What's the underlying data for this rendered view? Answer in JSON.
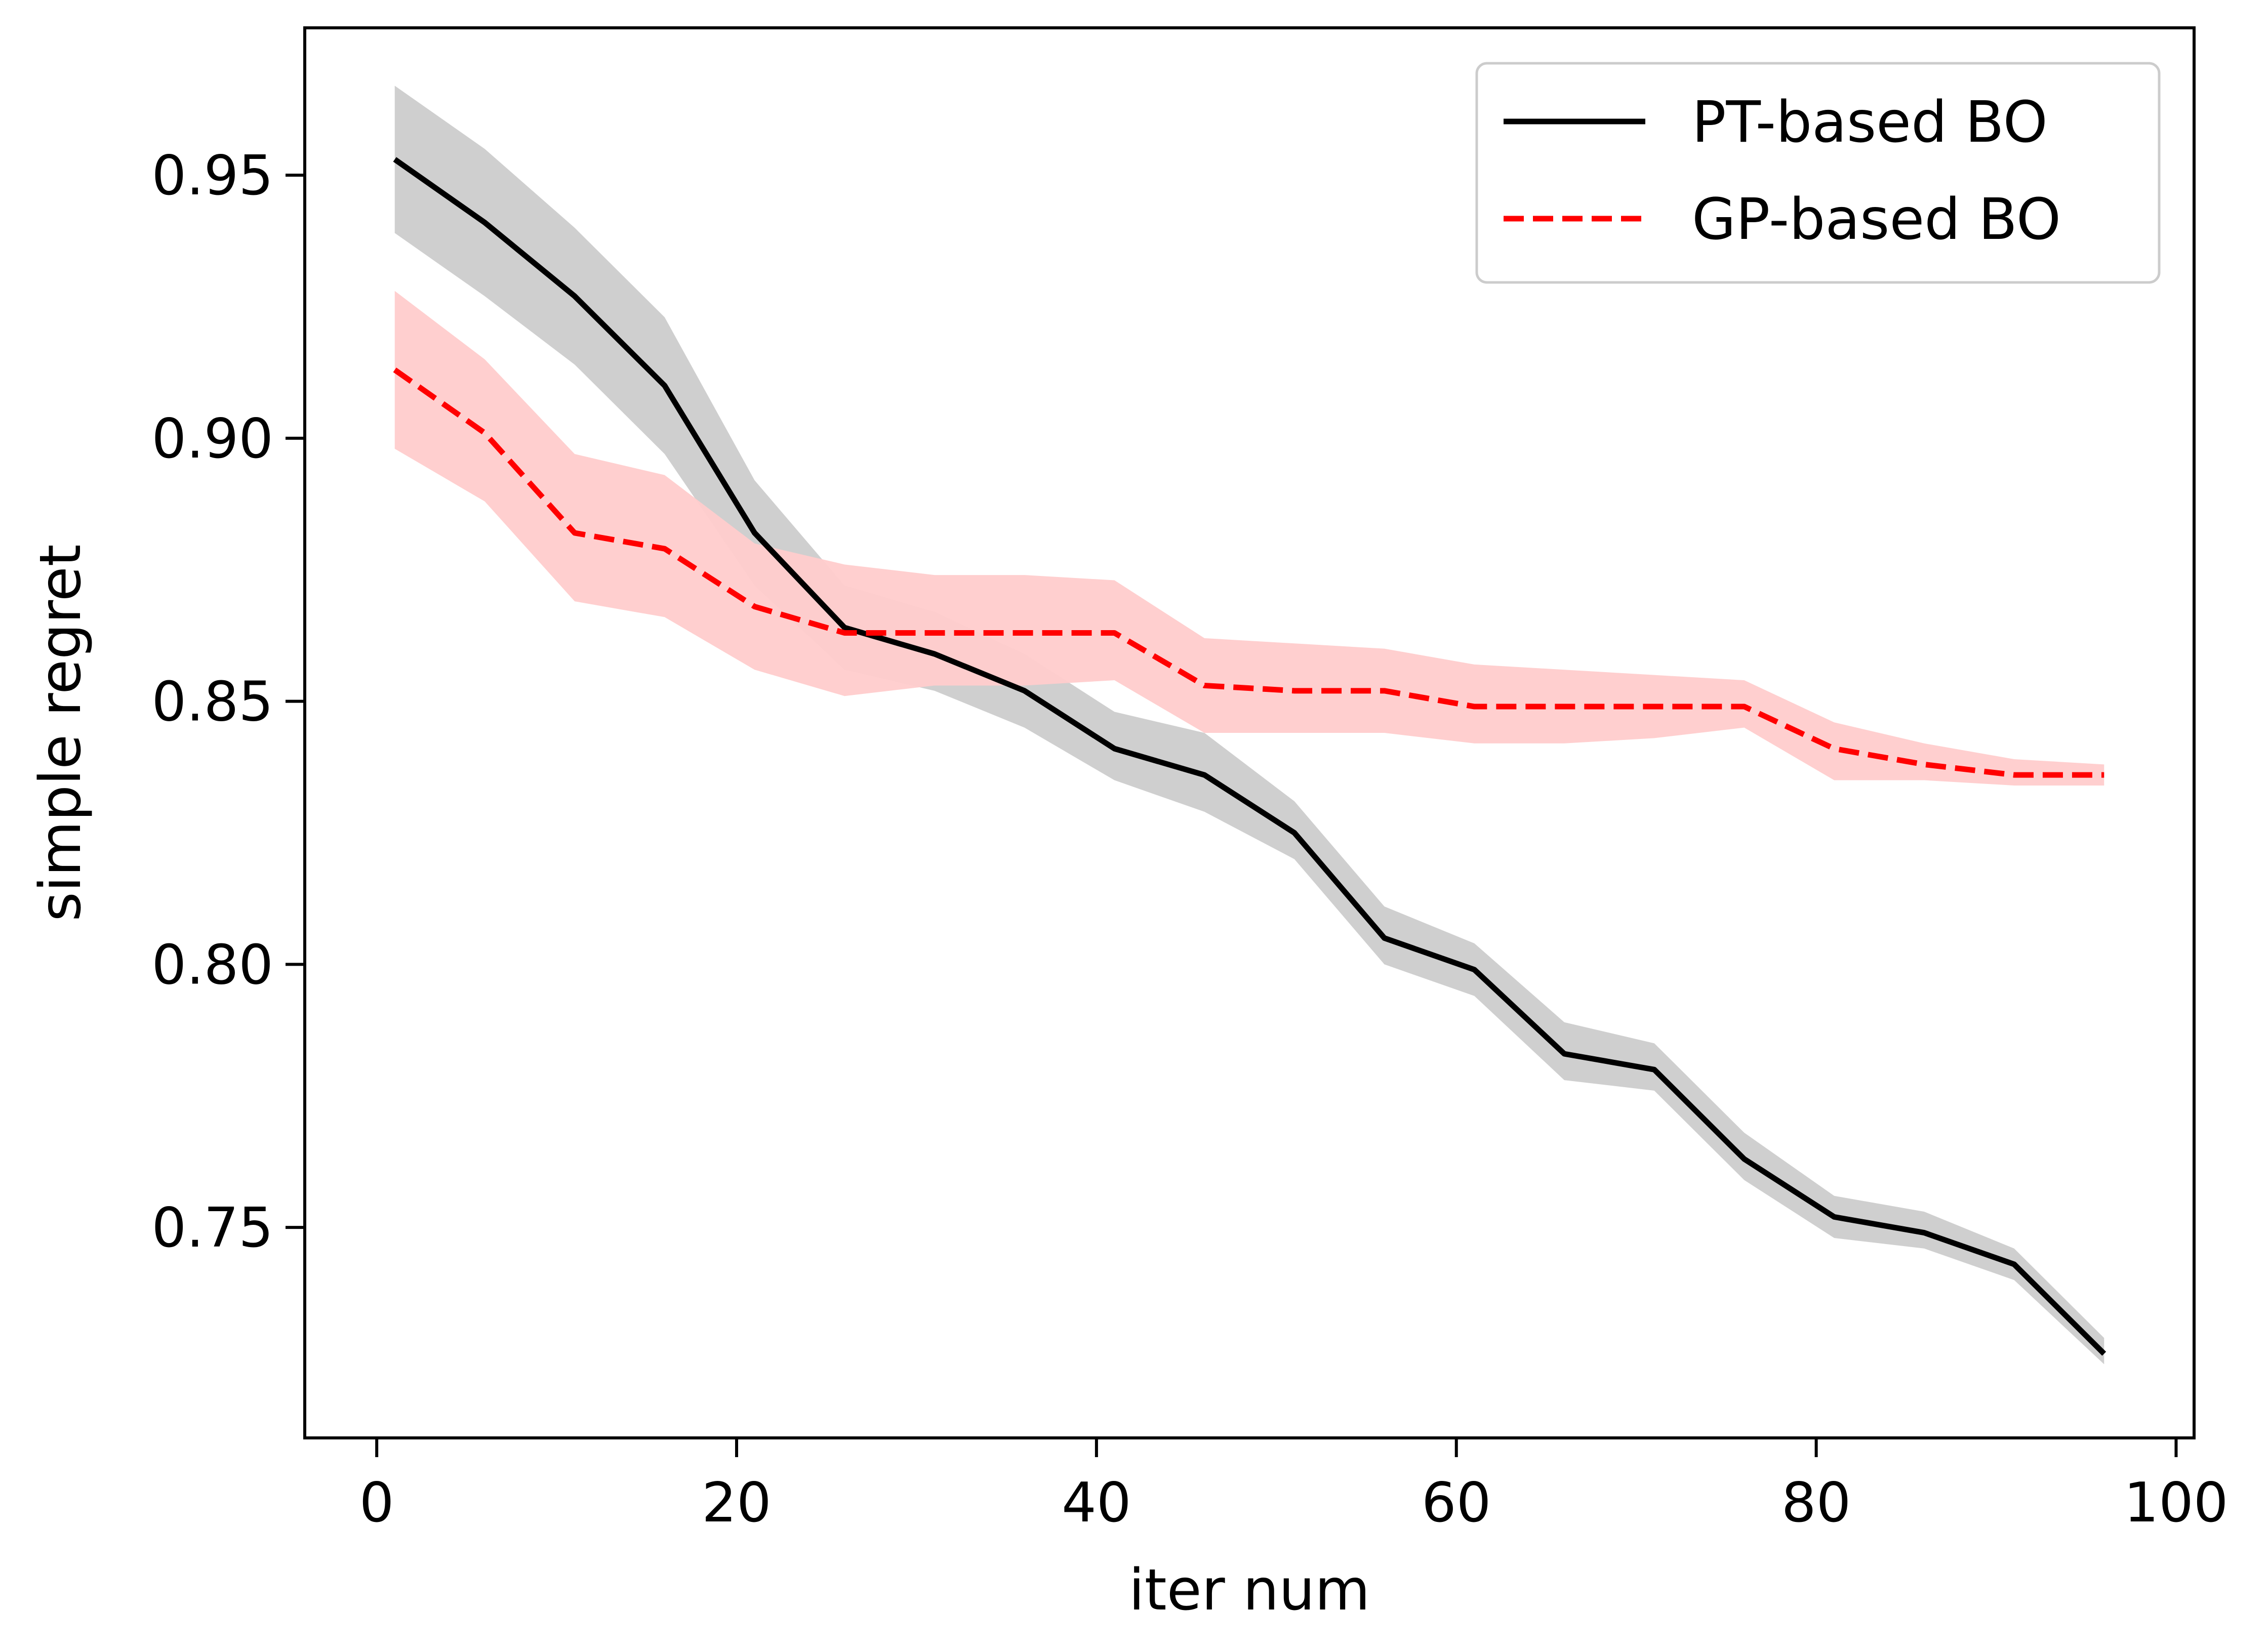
{
  "chart_data": {
    "type": "line",
    "xlabel": "iter num",
    "ylabel": "simple regret",
    "xlim": [
      -4,
      101
    ],
    "ylim": [
      0.71,
      0.978
    ],
    "xticks": [
      0,
      20,
      40,
      60,
      80,
      100
    ],
    "xtick_labels": [
      "0",
      "20",
      "40",
      "60",
      "80",
      "100"
    ],
    "yticks": [
      0.75,
      0.8,
      0.85,
      0.9,
      0.95
    ],
    "ytick_labels": [
      "0.75",
      "0.80",
      "0.85",
      "0.90",
      "0.95"
    ],
    "grid": false,
    "legend_position": "top-right",
    "x": [
      1,
      6,
      11,
      16,
      21,
      26,
      31,
      36,
      41,
      46,
      51,
      56,
      61,
      66,
      71,
      76,
      81,
      86,
      91,
      96
    ],
    "series": [
      {
        "name": "PT-based BO",
        "color": "#000000",
        "band_color": "#cccccc",
        "line_style": "solid",
        "values": [
          0.953,
          0.941,
          0.927,
          0.91,
          0.882,
          0.864,
          0.859,
          0.852,
          0.841,
          0.836,
          0.825,
          0.805,
          0.799,
          0.783,
          0.78,
          0.763,
          0.752,
          0.749,
          0.743,
          0.726
        ],
        "lower": [
          0.939,
          0.927,
          0.914,
          0.897,
          0.872,
          0.856,
          0.852,
          0.845,
          0.835,
          0.829,
          0.82,
          0.8,
          0.794,
          0.778,
          0.776,
          0.759,
          0.748,
          0.746,
          0.74,
          0.724
        ],
        "upper": [
          0.967,
          0.955,
          0.94,
          0.923,
          0.892,
          0.872,
          0.867,
          0.859,
          0.848,
          0.844,
          0.831,
          0.811,
          0.804,
          0.789,
          0.785,
          0.768,
          0.756,
          0.753,
          0.746,
          0.729
        ]
      },
      {
        "name": "GP-based BO",
        "color": "#ff0000",
        "band_color": "#ffcccc",
        "line_style": "dashed",
        "values": [
          0.913,
          0.901,
          0.882,
          0.879,
          0.868,
          0.863,
          0.863,
          0.863,
          0.863,
          0.853,
          0.852,
          0.852,
          0.849,
          0.849,
          0.849,
          0.849,
          0.841,
          0.838,
          0.836,
          0.836
        ],
        "lower": [
          0.898,
          0.888,
          0.869,
          0.866,
          0.856,
          0.851,
          0.853,
          0.853,
          0.854,
          0.844,
          0.844,
          0.844,
          0.842,
          0.842,
          0.843,
          0.845,
          0.835,
          0.835,
          0.834,
          0.834
        ],
        "upper": [
          0.928,
          0.915,
          0.897,
          0.893,
          0.88,
          0.876,
          0.874,
          0.874,
          0.873,
          0.862,
          0.861,
          0.86,
          0.857,
          0.856,
          0.855,
          0.854,
          0.846,
          0.842,
          0.839,
          0.838
        ]
      }
    ]
  }
}
